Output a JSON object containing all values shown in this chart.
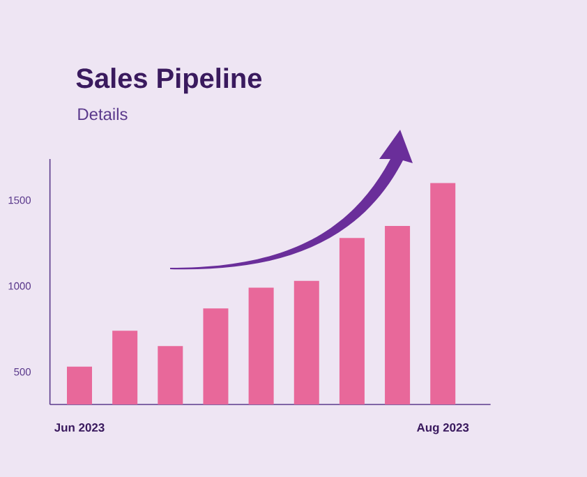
{
  "chart_data": {
    "type": "bar",
    "title": "Sales Pipeline",
    "subtitle": "Details",
    "categories": [
      "Jun 2023",
      null,
      null,
      null,
      null,
      null,
      null,
      null,
      "Aug 2023"
    ],
    "values": [
      530,
      740,
      650,
      870,
      990,
      1030,
      1280,
      1350,
      1600
    ],
    "color": "#e8689a",
    "ylim": [
      310,
      1740
    ],
    "yticks": [
      500,
      1000,
      1500
    ]
  }
}
